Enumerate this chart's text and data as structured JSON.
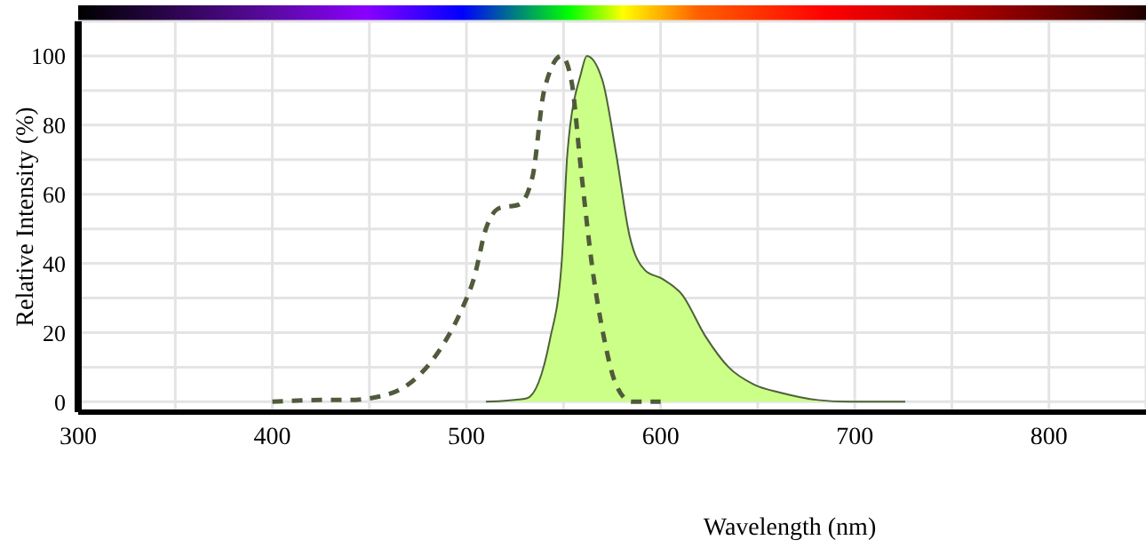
{
  "chart_data": {
    "type": "line",
    "xlabel": "Wavelength (nm)",
    "ylabel": "Relative Intensity (%)",
    "xlim": [
      300,
      850
    ],
    "ylim": [
      -3,
      110
    ],
    "xticks": [
      300,
      {
        "value": 350,
        "label": null
      },
      400,
      {
        "value": 450,
        "label": null
      },
      500,
      {
        "value": 550,
        "label": null
      },
      600,
      {
        "value": 650,
        "label": null
      },
      700,
      {
        "value": 750,
        "label": null
      },
      800
    ],
    "yticks": [
      0,
      {
        "value": 10,
        "label": null
      },
      20,
      {
        "value": 30,
        "label": null
      },
      40,
      {
        "value": 50,
        "label": null
      },
      60,
      {
        "value": 70,
        "label": null
      },
      80,
      {
        "value": 90,
        "label": null
      },
      100
    ],
    "grid": true,
    "legend": false,
    "series": [
      {
        "line_style": "dashed",
        "color": "#4f5b3a",
        "x": [
          400,
          425,
          439,
          455,
          470,
          485,
          497,
          504,
          510,
          517,
          527,
          534,
          540,
          549,
          554,
          559,
          565,
          571,
          577,
          585,
          600
        ],
        "values": [
          0,
          0.5,
          0.5,
          1.5,
          5,
          14,
          26,
          36,
          50,
          56,
          57,
          65,
          90,
          100,
          93,
          67,
          38,
          18,
          5,
          0,
          0
        ]
      },
      {
        "type": "area",
        "color": "#ccff88",
        "x": [
          510,
          531,
          543,
          549,
          552,
          559,
          562,
          570,
          577,
          584,
          592,
          601,
          611,
          623,
          635,
          648,
          662,
          681,
          697,
          726
        ],
        "values": [
          0,
          1,
          18,
          40,
          72,
          95,
          100,
          93,
          72,
          48,
          38,
          35.5,
          31,
          19,
          10,
          5,
          2.6,
          0.5,
          0,
          0
        ]
      }
    ]
  }
}
